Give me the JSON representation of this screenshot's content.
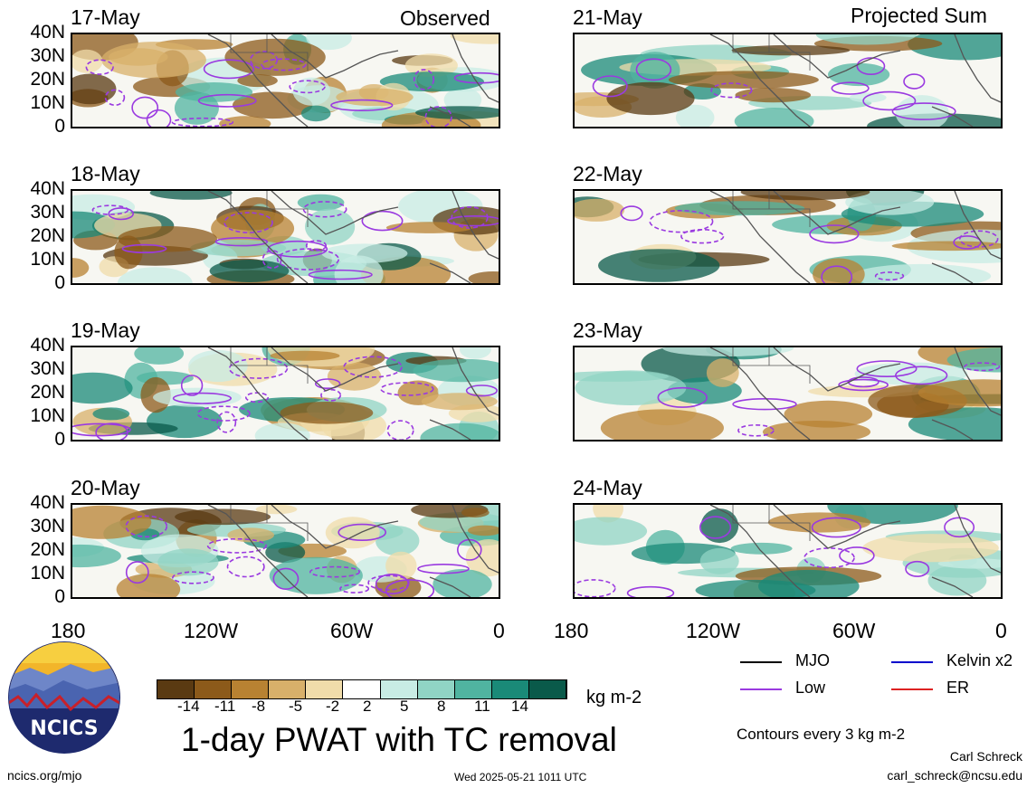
{
  "header": {
    "left": "Observed",
    "right": "Projected Sum"
  },
  "panels": [
    {
      "date": "17-May",
      "column": "observed"
    },
    {
      "date": "18-May",
      "column": "observed"
    },
    {
      "date": "19-May",
      "column": "observed"
    },
    {
      "date": "20-May",
      "column": "observed"
    },
    {
      "date": "21-May",
      "column": "projected"
    },
    {
      "date": "22-May",
      "column": "projected"
    },
    {
      "date": "23-May",
      "column": "projected"
    },
    {
      "date": "24-May",
      "column": "projected"
    }
  ],
  "axes": {
    "y_ticks": [
      "40N",
      "30N",
      "20N",
      "10N",
      "0"
    ],
    "x_ticks": [
      "180",
      "120W",
      "60W",
      "0"
    ]
  },
  "colorbar": {
    "ticks": [
      "-14",
      "-11",
      "-8",
      "-5",
      "-2",
      "2",
      "5",
      "8",
      "11",
      "14"
    ],
    "colors": [
      "#5a3a12",
      "#8c5a1a",
      "#b88232",
      "#d8b06a",
      "#f0dcaa",
      "#ffffff",
      "#c8ece4",
      "#90d4c4",
      "#50b4a0",
      "#1a8a78",
      "#0a5a4a"
    ],
    "units": "kg m-2"
  },
  "legend": {
    "items": [
      {
        "label": "MJO",
        "color": "#000000"
      },
      {
        "label": "Kelvin x2",
        "color": "#0000cc"
      },
      {
        "label": "Low",
        "color": "#9a3ae0"
      },
      {
        "label": "ER",
        "color": "#dd2222"
      }
    ],
    "note": "Contours every 3 kg m-2"
  },
  "title": "1-day PWAT with TC removal",
  "logo": {
    "text": "NCICS"
  },
  "footer": {
    "url": "ncics.org/mjo",
    "timestamp": "Wed 2025-05-21 1011 UTC",
    "author": "Carl Schreck",
    "email": "carl_schreck@ncsu.edu"
  }
}
